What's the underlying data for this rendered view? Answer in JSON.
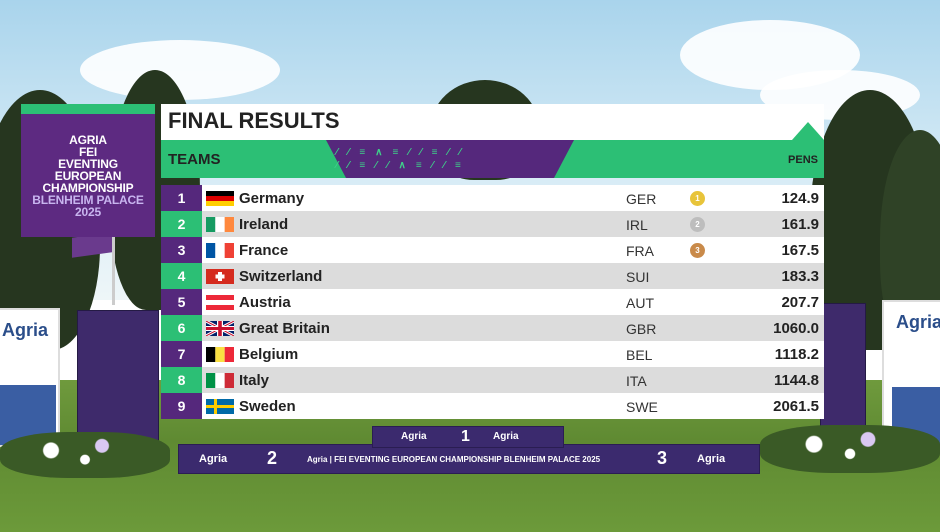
{
  "event": {
    "sponsor": "AGRIA",
    "federation": "FEI",
    "line1": "EVENTING",
    "line2": "EUROPEAN",
    "line3": "CHAMPIONSHIP",
    "place": "BLENHEIM PALACE",
    "year": "2025"
  },
  "board": {
    "title": "FINAL RESULTS",
    "subtitle": "TEAMS",
    "pens_header": "PENS"
  },
  "results": [
    {
      "rank": "1",
      "name": "Germany",
      "code": "GER",
      "medal": "1",
      "pens": "124.9",
      "flag": "de"
    },
    {
      "rank": "2",
      "name": "Ireland",
      "code": "IRL",
      "medal": "2",
      "pens": "161.9",
      "flag": "ie"
    },
    {
      "rank": "3",
      "name": "France",
      "code": "FRA",
      "medal": "3",
      "pens": "167.5",
      "flag": "fr"
    },
    {
      "rank": "4",
      "name": "Switzerland",
      "code": "SUI",
      "medal": "",
      "pens": "183.3",
      "flag": "ch"
    },
    {
      "rank": "5",
      "name": "Austria",
      "code": "AUT",
      "medal": "",
      "pens": "207.7",
      "flag": "at"
    },
    {
      "rank": "6",
      "name": "Great Britain",
      "code": "GBR",
      "medal": "",
      "pens": "1060.0",
      "flag": "gb"
    },
    {
      "rank": "7",
      "name": "Belgium",
      "code": "BEL",
      "medal": "",
      "pens": "1118.2",
      "flag": "be"
    },
    {
      "rank": "8",
      "name": "Italy",
      "code": "ITA",
      "medal": "",
      "pens": "1144.8",
      "flag": "it"
    },
    {
      "rank": "9",
      "name": "Sweden",
      "code": "SWE",
      "medal": "",
      "pens": "2061.5",
      "flag": "se"
    }
  ],
  "venue": {
    "podium_center_number": "1",
    "podium_left_number": "2",
    "podium_right_number": "3",
    "podium_banner": "Agria | FEI EVENTING EUROPEAN CHAMPIONSHIP BLENHEIM PALACE 2025",
    "podium_brand": "Agria",
    "board_brand": "Agria"
  },
  "colors": {
    "purple": "#55287c",
    "green": "#2cbf75",
    "row_light": "#ffffff",
    "row_dark": "#dcdcdc",
    "gold": "#e8c43a",
    "silver": "#bdbdbd",
    "bronze": "#c98a4a"
  }
}
